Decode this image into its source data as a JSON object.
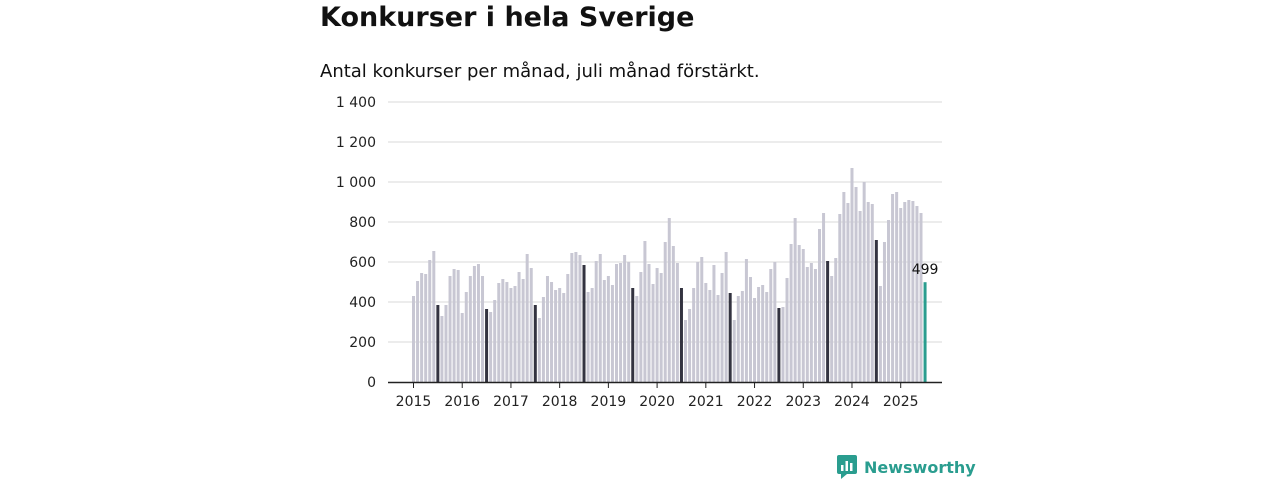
{
  "title": "Konkurser i hela Sverige",
  "subtitle": "Antal konkurser per månad, juli månad förstärkt.",
  "brand": {
    "name": "Newsworthy",
    "icon": "newsworthy-logo-icon",
    "color": "#2a9d8f"
  },
  "colors": {
    "regular": "#c8c7d3",
    "highlight": "#333340",
    "latest": "#2a9d8f",
    "grid": "#d9d9d9",
    "axis": "#222222"
  },
  "chart_data": {
    "type": "bar",
    "title": "Konkurser i hela Sverige",
    "subtitle": "Antal konkurser per månad, juli månad förstärkt.",
    "xlabel": "",
    "ylabel": "",
    "ylim": [
      0,
      1400
    ],
    "yticks": [
      0,
      200,
      400,
      600,
      800,
      1000,
      1200,
      1400
    ],
    "ytick_labels": [
      "0",
      "200",
      "400",
      "600",
      "800",
      "1 000",
      "1 200",
      "1 400"
    ],
    "grid": true,
    "x_start": "2015-01",
    "x_labels": [
      "2015",
      "2016",
      "2017",
      "2018",
      "2019",
      "2020",
      "2021",
      "2022",
      "2023",
      "2024",
      "2025"
    ],
    "highlight_month": "juli",
    "data_labels": [
      {
        "month": "2025-07",
        "value": 499,
        "text": "499"
      }
    ],
    "values": [
      430,
      505,
      545,
      540,
      610,
      655,
      385,
      330,
      385,
      530,
      565,
      560,
      345,
      450,
      530,
      580,
      590,
      530,
      365,
      350,
      410,
      495,
      515,
      500,
      470,
      480,
      550,
      515,
      640,
      570,
      385,
      320,
      425,
      530,
      500,
      460,
      470,
      445,
      540,
      645,
      650,
      635,
      585,
      450,
      470,
      605,
      640,
      510,
      530,
      485,
      590,
      595,
      635,
      600,
      470,
      430,
      550,
      705,
      590,
      490,
      570,
      545,
      700,
      820,
      680,
      595,
      470,
      310,
      365,
      470,
      600,
      625,
      495,
      460,
      585,
      435,
      545,
      650,
      445,
      310,
      430,
      455,
      615,
      525,
      420,
      475,
      485,
      450,
      565,
      600,
      370,
      375,
      520,
      690,
      820,
      685,
      665,
      575,
      595,
      565,
      765,
      845,
      605,
      530,
      620,
      840,
      950,
      895,
      1070,
      975,
      855,
      1000,
      900,
      890,
      710,
      480,
      700,
      810,
      940,
      950,
      870,
      900,
      910,
      905,
      880,
      845,
      499
    ]
  }
}
